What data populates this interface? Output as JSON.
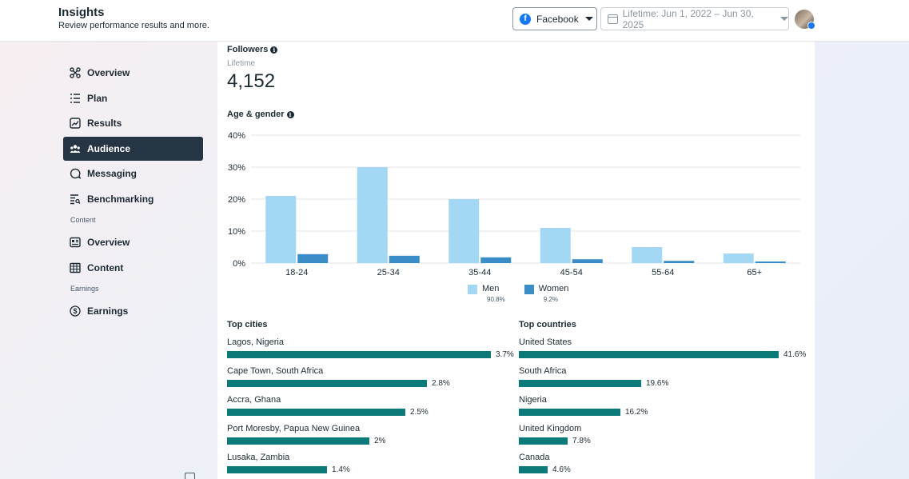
{
  "header": {
    "title": "Insights",
    "subtitle": "Review performance results and more.",
    "platform": "Facebook",
    "date_range": "Lifetime: Jun 1, 2022 – Jun 30, 2025",
    "platform_icon": "facebook-icon"
  },
  "sidebar": {
    "items": [
      {
        "label": "Overview",
        "icon": "network-icon"
      },
      {
        "label": "Plan",
        "icon": "list-icon"
      },
      {
        "label": "Results",
        "icon": "chart-icon"
      },
      {
        "label": "Audience",
        "icon": "people-icon",
        "active": true
      },
      {
        "label": "Messaging",
        "icon": "message-icon"
      },
      {
        "label": "Benchmarking",
        "icon": "benchmark-icon"
      }
    ],
    "content_label": "Content",
    "content_items": [
      {
        "label": "Overview",
        "icon": "layout-icon"
      },
      {
        "label": "Content",
        "icon": "grid-icon"
      }
    ],
    "earnings_label": "Earnings",
    "earnings_items": [
      {
        "label": "Earnings",
        "icon": "dollar-icon"
      }
    ]
  },
  "followers": {
    "title": "Followers",
    "period": "Lifetime",
    "count": "4,152"
  },
  "age_gender": {
    "title": "Age & gender",
    "legend": [
      {
        "name": "Men",
        "pct": "90.8%",
        "color": "#a3d8f4"
      },
      {
        "name": "Women",
        "pct": "9.2%",
        "color": "#3b8dc8"
      }
    ]
  },
  "chart_data": {
    "type": "bar",
    "categories": [
      "18-24",
      "25-34",
      "35-44",
      "45-54",
      "55-64",
      "65+"
    ],
    "series": [
      {
        "name": "Men",
        "values": [
          21,
          30,
          20,
          11,
          5,
          3
        ]
      },
      {
        "name": "Women",
        "values": [
          2.8,
          2.3,
          1.8,
          1.2,
          0.7,
          0.5
        ]
      }
    ],
    "yticks": [
      "40%",
      "30%",
      "20%",
      "10%",
      "0%"
    ],
    "ylim": [
      0,
      40
    ]
  },
  "top_cities": {
    "title": "Top cities",
    "rows": [
      {
        "label": "Lagos, Nigeria",
        "value": "3.7%",
        "num": 3.7
      },
      {
        "label": "Cape Town, South Africa",
        "value": "2.8%",
        "num": 2.8
      },
      {
        "label": "Accra, Ghana",
        "value": "2.5%",
        "num": 2.5
      },
      {
        "label": "Port Moresby, Papua New Guinea",
        "value": "2%",
        "num": 2.0
      },
      {
        "label": "Lusaka, Zambia",
        "value": "1.4%",
        "num": 1.4
      }
    ]
  },
  "top_countries": {
    "title": "Top countries",
    "rows": [
      {
        "label": "United States",
        "value": "41.6%",
        "num": 41.6
      },
      {
        "label": "South Africa",
        "value": "19.6%",
        "num": 19.6
      },
      {
        "label": "Nigeria",
        "value": "16.2%",
        "num": 16.2
      },
      {
        "label": "United Kingdom",
        "value": "7.8%",
        "num": 7.8
      },
      {
        "label": "Canada",
        "value": "4.6%",
        "num": 4.6
      }
    ]
  },
  "colors": {
    "accent": "#0b7a78",
    "nav_active": "#253543",
    "men": "#a3d8f4",
    "women": "#3b8dc8"
  }
}
